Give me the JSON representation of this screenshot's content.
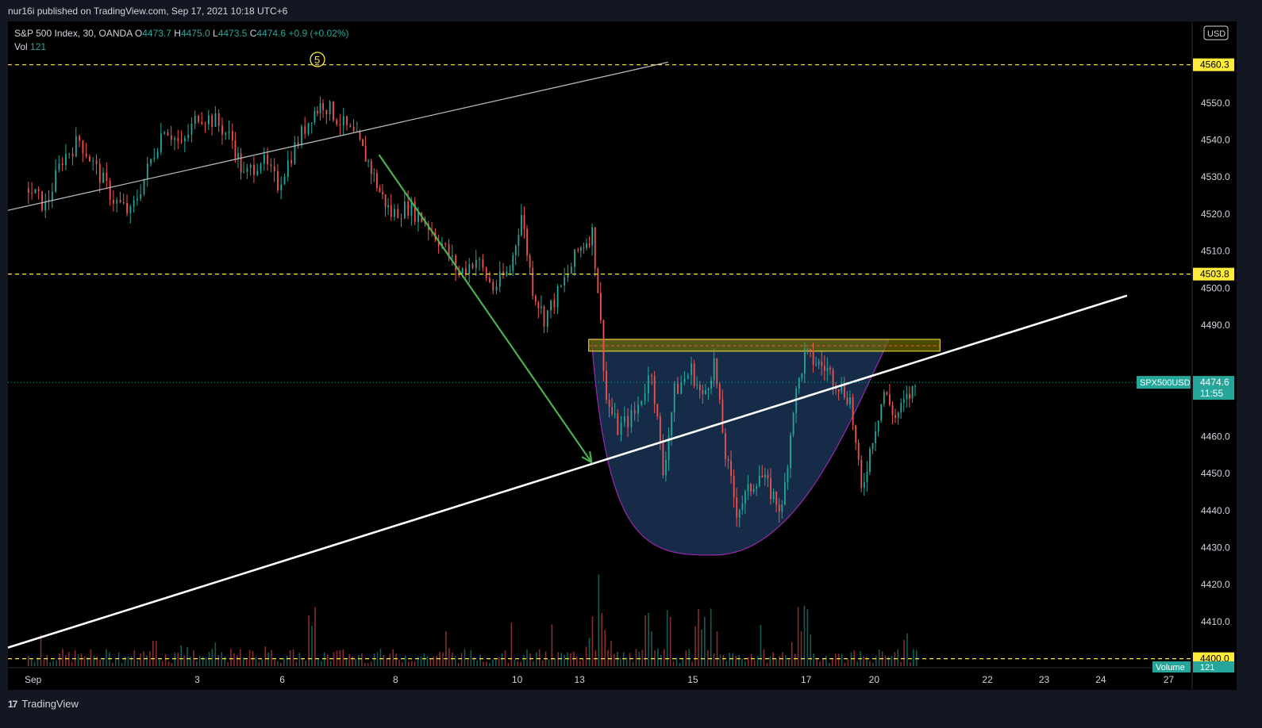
{
  "publisher": "nur16i published on TradingView.com, Sep 17, 2021 10:18 UTC+6",
  "legend": {
    "symbol": "S&P 500 Index, 30, OANDA",
    "o_label": "O",
    "o": "4473.7",
    "h_label": "H",
    "h": "4475.0",
    "l_label": "L",
    "l": "4473.5",
    "c_label": "C",
    "c": "4474.6",
    "change": "+0.9 (+0.02%)",
    "vol_label": "Vol",
    "vol": "121"
  },
  "footer": {
    "logo": "17",
    "brand": "TradingView"
  },
  "chart_data": {
    "type": "candlestick",
    "symbol": "SPX500USD",
    "currency": "USD",
    "y_range": [
      4398,
      4572
    ],
    "y_ticks": [
      "4550.0",
      "4540.0",
      "4530.0",
      "4520.0",
      "4510.0",
      "4500.0",
      "4490.0",
      "4480.0",
      "4470.0",
      "4460.0",
      "4450.0",
      "4440.0",
      "4430.0",
      "4420.0",
      "4410.0"
    ],
    "x_ticks": [
      {
        "label": "Sep",
        "pos": 0.0
      },
      {
        "label": "3",
        "pos": 3.0
      },
      {
        "label": "6",
        "pos": 4.5
      },
      {
        "label": "8",
        "pos": 6.5
      },
      {
        "label": "10",
        "pos": 8.6
      },
      {
        "label": "13",
        "pos": 9.7
      },
      {
        "label": "15",
        "pos": 11.7
      },
      {
        "label": "17",
        "pos": 13.7
      },
      {
        "label": "20",
        "pos": 14.9
      },
      {
        "label": "22",
        "pos": 16.9
      },
      {
        "label": "23",
        "pos": 17.9
      },
      {
        "label": "24",
        "pos": 18.9
      },
      {
        "label": "27",
        "pos": 20.1
      }
    ],
    "x_range": [
      -0.35,
      20.55
    ],
    "last_price": {
      "label": "SPX500USD",
      "value": 4474.6,
      "text": "4474.6",
      "countdown": "11:55"
    },
    "price_lines": [
      {
        "value": 4560.3,
        "text": "4560.3"
      },
      {
        "value": 4503.8,
        "text": "4503.8"
      },
      {
        "value": 4400.0,
        "text": "4400.0"
      }
    ],
    "volume": {
      "label": "Volume",
      "value": "121"
    },
    "annotation_marker": "5",
    "price_path": [
      [
        0.0,
        4527
      ],
      [
        0.3,
        4522
      ],
      [
        0.6,
        4535
      ],
      [
        0.9,
        4540
      ],
      [
        1.2,
        4532
      ],
      [
        1.5,
        4524
      ],
      [
        1.8,
        4520
      ],
      [
        2.1,
        4532
      ],
      [
        2.4,
        4544
      ],
      [
        2.7,
        4538
      ],
      [
        3.0,
        4547
      ],
      [
        3.3,
        4545
      ],
      [
        3.6,
        4540
      ],
      [
        3.8,
        4530
      ],
      [
        4.1,
        4535
      ],
      [
        4.4,
        4528
      ],
      [
        4.7,
        4538
      ],
      [
        5.0,
        4547
      ],
      [
        5.2,
        4550
      ],
      [
        5.5,
        4545
      ],
      [
        5.8,
        4540
      ],
      [
        6.0,
        4534
      ],
      [
        6.2,
        4526
      ],
      [
        6.4,
        4520
      ],
      [
        6.7,
        4522
      ],
      [
        7.0,
        4518
      ],
      [
        7.3,
        4512
      ],
      [
        7.6,
        4504
      ],
      [
        7.9,
        4508
      ],
      [
        8.2,
        4500
      ],
      [
        8.5,
        4505
      ],
      [
        8.7,
        4520
      ],
      [
        8.9,
        4500
      ],
      [
        9.1,
        4492
      ],
      [
        9.4,
        4500
      ],
      [
        9.7,
        4510
      ],
      [
        9.95,
        4515
      ],
      [
        10.05,
        4500
      ],
      [
        10.2,
        4470
      ],
      [
        10.4,
        4462
      ],
      [
        10.7,
        4466
      ],
      [
        11.0,
        4478
      ],
      [
        11.2,
        4450
      ],
      [
        11.4,
        4472
      ],
      [
        11.7,
        4478
      ],
      [
        11.9,
        4470
      ],
      [
        12.1,
        4480
      ],
      [
        12.3,
        4455
      ],
      [
        12.5,
        4440
      ],
      [
        12.7,
        4445
      ],
      [
        12.9,
        4450
      ],
      [
        13.1,
        4445
      ],
      [
        13.3,
        4440
      ],
      [
        13.5,
        4468
      ],
      [
        13.7,
        4482
      ],
      [
        13.9,
        4480
      ],
      [
        14.1,
        4478
      ],
      [
        14.3,
        4474
      ],
      [
        14.5,
        4470
      ],
      [
        14.7,
        4445
      ],
      [
        14.9,
        4460
      ],
      [
        15.1,
        4472
      ],
      [
        15.3,
        4465
      ],
      [
        15.5,
        4470
      ],
      [
        15.7,
        4474.6
      ]
    ],
    "green_arrow": {
      "from": [
        6.2,
        4536
      ],
      "to": [
        9.95,
        4453
      ]
    },
    "white_line": {
      "from": [
        -0.35,
        4403
      ],
      "to": [
        19.4,
        4498
      ]
    },
    "gray_line": {
      "from": [
        -0.35,
        4521
      ],
      "to": [
        11.3,
        4561
      ]
    },
    "resistance_zone": {
      "x_from": 9.9,
      "x_to": 16.1,
      "y_from": 4483,
      "y_to": 4486.2,
      "mid": 4484.5
    },
    "cup": {
      "x_left": 9.95,
      "x_bottom": 12.1,
      "x_right": 15.2,
      "y_top": 4486,
      "y_bottom": 4428
    },
    "colors": {
      "up": "#26a69a",
      "down": "#ef5350",
      "zone": "#ffeb3b",
      "line_yellow": "#ffeb3b",
      "arrow": "#4caf50",
      "cup_fill": "#1e3a5f",
      "cup_stroke": "#9c27b0",
      "accent": "#26a69a"
    }
  }
}
